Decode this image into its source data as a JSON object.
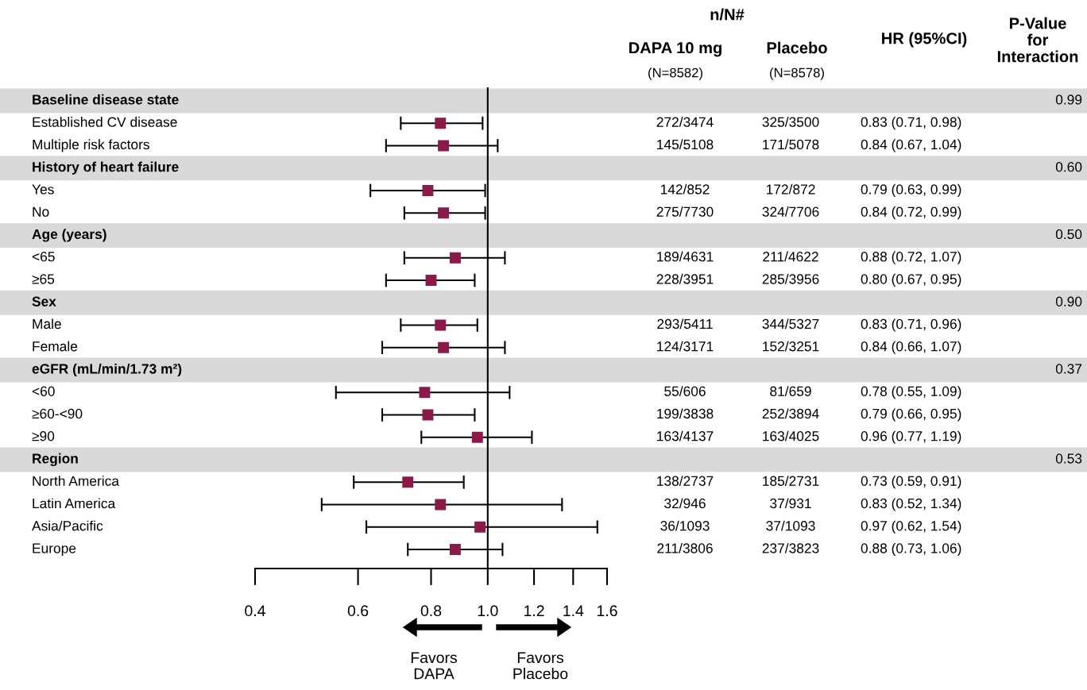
{
  "chart_data": {
    "type": "scatter",
    "orientation": "horizontal",
    "marker": "square",
    "color": "#8b1a4a",
    "log": "x",
    "grid": false,
    "categories": [
      "Baseline disease state",
      "Established CV disease",
      "Multiple risk factors",
      "History of heart failure",
      "Yes",
      "No",
      "Age (years)",
      "<65",
      "≥65",
      "Sex",
      "Male",
      "Female",
      "eGFR (mL/min/1.73 m²)",
      "<60",
      "≥60-<90",
      "≥90",
      "Region",
      "North America",
      "Latin America",
      "Asia/Pacific",
      "Europe"
    ],
    "values": [
      null,
      0.83,
      0.84,
      null,
      0.79,
      0.84,
      null,
      0.88,
      0.8,
      null,
      0.83,
      0.84,
      null,
      0.78,
      0.79,
      0.96,
      null,
      0.73,
      0.83,
      0.97,
      0.88
    ],
    "errors": [
      null,
      [
        0.71,
        0.98
      ],
      [
        0.67,
        1.04
      ],
      null,
      [
        0.63,
        0.99
      ],
      [
        0.72,
        0.99
      ],
      null,
      [
        0.72,
        1.07
      ],
      [
        0.67,
        0.95
      ],
      null,
      [
        0.71,
        0.96
      ],
      [
        0.66,
        1.07
      ],
      null,
      [
        0.55,
        1.09
      ],
      [
        0.66,
        0.95
      ],
      [
        0.77,
        1.19
      ],
      null,
      [
        0.59,
        0.91
      ],
      [
        0.52,
        1.34
      ],
      [
        0.62,
        1.54
      ],
      [
        0.73,
        1.06
      ]
    ],
    "value_labels": [
      null,
      "0.83 (0.71, 0.98)",
      "0.84 (0.67, 1.04)",
      null,
      "0.79 (0.63, 0.99)",
      "0.84 (0.72, 0.99)",
      null,
      "0.88 (0.72, 1.07)",
      "0.80 (0.67, 0.95)",
      null,
      "0.83 (0.71, 0.96)",
      "0.84 (0.66, 1.07)",
      null,
      "0.78 (0.55, 1.09)",
      "0.79 (0.66, 0.95)",
      "0.96 (0.77, 1.19)",
      null,
      "0.73 (0.59, 0.91)",
      "0.83 (0.52, 1.34)",
      "0.97 (0.62, 1.54)",
      "0.88 (0.73, 1.06)"
    ],
    "xlim": [
      0.4,
      1.6
    ],
    "xticks": [
      {
        "value": 0.4,
        "label": "0.4"
      },
      {
        "value": 0.6,
        "label": "0.6"
      },
      {
        "value": 0.8,
        "label": "0.8"
      },
      {
        "value": 1.0,
        "label": "1.0"
      },
      {
        "value": 1.2,
        "label": "1.2"
      },
      {
        "value": 1.4,
        "label": "1.4"
      },
      {
        "value": 1.6,
        "label": "1.6"
      }
    ],
    "tick_labels": "x",
    "ref_lines": [
      {
        "axis": "x",
        "value": 1.0,
        "color": "#000000"
      }
    ],
    "annotations": [
      "n/N#",
      "DAPA 10 mg",
      "Placebo",
      "(N=8582)",
      "(N=8578)",
      "HR (95%CI)",
      "P-Value for Interaction",
      "Favors DAPA",
      "Favors Placebo",
      "0.99",
      "272/3474",
      "325/3500",
      "145/5108",
      "171/5078",
      "0.60",
      "142/852",
      "172/872",
      "275/7730",
      "324/7706",
      "0.50",
      "189/4631",
      "211/4622",
      "228/3951",
      "285/3956",
      "0.90",
      "293/5411",
      "344/5327",
      "124/3171",
      "152/3251",
      "0.37",
      "55/606",
      "81/659",
      "199/3838",
      "252/3894",
      "163/4137",
      "163/4025",
      "0.53",
      "138/2737",
      "185/2731",
      "32/946",
      "37/931",
      "36/1093",
      "37/1093",
      "211/3806",
      "237/3823"
    ]
  }
}
